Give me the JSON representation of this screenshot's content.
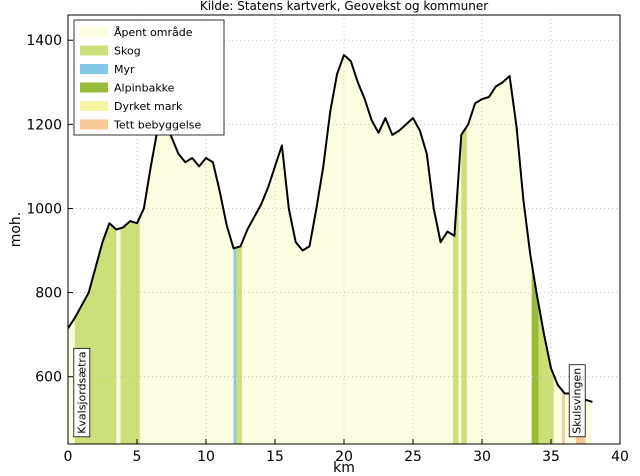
{
  "chart_data": {
    "type": "area",
    "title": "Kilde: Statens kartverk, Geovekst og kommuner",
    "xlabel": "km",
    "ylabel": "moh.",
    "xlim": [
      0,
      40
    ],
    "ylim": [
      440,
      1460
    ],
    "x_ticks": [
      "0",
      "5",
      "10",
      "15",
      "20",
      "25",
      "30",
      "35",
      "40"
    ],
    "y_ticks": [
      "600",
      "800",
      "1000",
      "1200",
      "1400"
    ],
    "grid": true,
    "legend_position": "top-left",
    "legend": [
      {
        "label": "Åpent område",
        "color": "#fdfde2"
      },
      {
        "label": "Skog",
        "color": "#cce07a"
      },
      {
        "label": "Myr",
        "color": "#87c8e8"
      },
      {
        "label": "Alpinbakke",
        "color": "#99bb3c"
      },
      {
        "label": "Dyrket mark",
        "color": "#f6f5a3"
      },
      {
        "label": "Tett bebyggelse",
        "color": "#f5c898"
      }
    ],
    "profile": {
      "x": [
        0,
        0.5,
        1,
        1.5,
        2,
        2.5,
        3,
        3.5,
        4,
        4.5,
        5,
        5.5,
        6,
        6.5,
        7,
        7.5,
        8,
        8.5,
        9,
        9.5,
        10,
        10.5,
        11,
        11.5,
        12,
        12.5,
        13,
        13.5,
        14,
        14.5,
        15,
        15.5,
        16,
        16.5,
        17,
        17.5,
        18,
        18.5,
        19,
        19.5,
        20,
        20.5,
        21,
        21.5,
        22,
        22.5,
        23,
        23.5,
        24,
        24.5,
        25,
        25.5,
        26,
        26.5,
        27,
        27.5,
        28,
        28.5,
        29,
        29.5,
        30,
        30.5,
        31,
        31.5,
        32,
        32.5,
        33,
        33.5,
        34,
        34.5,
        35,
        35.5,
        36,
        36.5,
        37,
        37.5,
        38
      ],
      "y": [
        715,
        740,
        770,
        800,
        860,
        920,
        965,
        950,
        955,
        970,
        965,
        1000,
        1100,
        1190,
        1205,
        1170,
        1130,
        1110,
        1120,
        1100,
        1120,
        1110,
        1040,
        960,
        905,
        910,
        950,
        980,
        1010,
        1050,
        1100,
        1150,
        1000,
        920,
        900,
        910,
        1000,
        1100,
        1230,
        1320,
        1365,
        1350,
        1300,
        1260,
        1210,
        1180,
        1215,
        1175,
        1185,
        1200,
        1215,
        1185,
        1130,
        1000,
        920,
        945,
        935,
        1175,
        1200,
        1250,
        1260,
        1265,
        1290,
        1300,
        1315,
        1195,
        1020,
        890,
        790,
        700,
        620,
        580,
        560,
        560,
        555,
        545,
        540
      ],
      "color": "#000000"
    },
    "landcover_segments": [
      {
        "class": "Åpent område",
        "x_start": 0,
        "x_end": 40
      },
      {
        "class": "Skog",
        "x_start": 0.5,
        "x_end": 3.5
      },
      {
        "class": "Skog",
        "x_start": 3.8,
        "x_end": 5.2
      },
      {
        "class": "Myr",
        "x_start": 12.0,
        "x_end": 12.2
      },
      {
        "class": "Skog",
        "x_start": 12.2,
        "x_end": 12.6
      },
      {
        "class": "Skog",
        "x_start": 27.9,
        "x_end": 28.3
      },
      {
        "class": "Skog",
        "x_start": 28.5,
        "x_end": 28.9
      },
      {
        "class": "Alpinbakke",
        "x_start": 33.6,
        "x_end": 34.1
      },
      {
        "class": "Skog",
        "x_start": 34.1,
        "x_end": 35.2
      },
      {
        "class": "Tett bebyggelse",
        "x_start": 35.8,
        "x_end": 36.0
      },
      {
        "class": "Tett bebyggelse",
        "x_start": 36.8,
        "x_end": 37.5
      }
    ],
    "annotations": [
      {
        "text": "Kvalsjordsætra",
        "x": 1.0,
        "y": 450
      },
      {
        "text": "Skulsvingen",
        "x": 36.9,
        "y": 450
      }
    ]
  }
}
